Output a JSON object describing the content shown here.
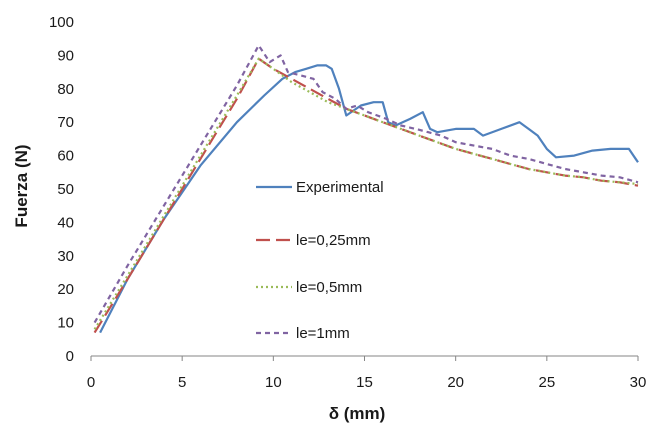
{
  "chart_data": {
    "type": "line",
    "xlabel": "δ (mm)",
    "ylabel": "Fuerza (N)",
    "xlim": [
      0,
      30
    ],
    "ylim": [
      0,
      100
    ],
    "xticks": [
      0,
      5,
      10,
      15,
      20,
      25,
      30
    ],
    "yticks": [
      0,
      10,
      20,
      30,
      40,
      50,
      60,
      70,
      80,
      90,
      100
    ],
    "grid": false,
    "legend_position": "center",
    "series": [
      {
        "name": "Experimental",
        "color": "#4F81BD",
        "dash": "solid",
        "x": [
          0.5,
          2,
          4,
          6,
          8,
          9.5,
          10.5,
          11.2,
          11.8,
          12.4,
          12.9,
          13.2,
          13.6,
          14.0,
          14.8,
          15.5,
          16.0,
          16.3,
          16.7,
          17.5,
          18.2,
          18.6,
          19.0,
          20.0,
          21.0,
          21.5,
          22.5,
          23.5,
          24.0,
          24.5,
          25.0,
          25.5,
          26.5,
          27.5,
          28.5,
          29.5,
          30.0
        ],
        "y": [
          7,
          23,
          41,
          57,
          70,
          78,
          83,
          85,
          86,
          87,
          87,
          86,
          80,
          72,
          75,
          76,
          76,
          70,
          69,
          71,
          73,
          68,
          67,
          68,
          68,
          66,
          68,
          70,
          68,
          66,
          62,
          59.5,
          60,
          61.5,
          62,
          62,
          58
        ]
      },
      {
        "name": "le=0,25mm",
        "color": "#C0504D",
        "dash": "long-dash",
        "x": [
          0.2,
          2,
          4,
          6,
          8,
          9.2,
          10,
          11,
          12,
          13,
          14,
          15,
          16,
          17,
          18,
          19,
          20,
          21,
          22,
          23,
          24,
          25,
          26,
          27,
          28,
          29,
          30
        ],
        "y": [
          7,
          23,
          41,
          59,
          77,
          89,
          86,
          83,
          80,
          77,
          74,
          72,
          70,
          68,
          66,
          64,
          62,
          60.5,
          59,
          57.5,
          56,
          55,
          54,
          53.5,
          52.5,
          52,
          51
        ]
      },
      {
        "name": "le=0,5mm",
        "color": "#9BBB59",
        "dash": "dotted",
        "x": [
          0.2,
          2,
          4,
          6,
          8,
          9.2,
          10,
          11,
          12,
          13,
          14,
          15,
          16,
          17,
          18,
          19,
          20,
          21,
          22,
          23,
          24,
          25,
          26,
          27,
          28,
          29,
          30
        ],
        "y": [
          8,
          24,
          42,
          60,
          78,
          89,
          86,
          82,
          79,
          76,
          74,
          72,
          70,
          68,
          66,
          64,
          62,
          60.5,
          59,
          57.5,
          56,
          55,
          54,
          53.5,
          52.5,
          52,
          51.5
        ]
      },
      {
        "name": "le=1mm",
        "color": "#8064A2",
        "dash": "short-dash",
        "x": [
          0.2,
          2,
          4,
          6,
          8,
          9.2,
          9.8,
          10.4,
          10.8,
          11.5,
          12.2,
          12.7,
          13.4,
          14.0,
          14.6,
          15.2,
          15.7,
          16.2,
          17.0,
          17.8,
          18.5,
          19.2,
          20.0,
          21.0,
          22.0,
          23.0,
          24.0,
          25.0,
          26.0,
          27.0,
          28.0,
          29.0,
          30.0
        ],
        "y": [
          10,
          27,
          45,
          63,
          81,
          93,
          88,
          90,
          85,
          84,
          83,
          79,
          77,
          74,
          75,
          73,
          72,
          71,
          69,
          68,
          67,
          66,
          64,
          63,
          62,
          60,
          59,
          57.5,
          56,
          55,
          54,
          53.5,
          52
        ]
      }
    ]
  }
}
